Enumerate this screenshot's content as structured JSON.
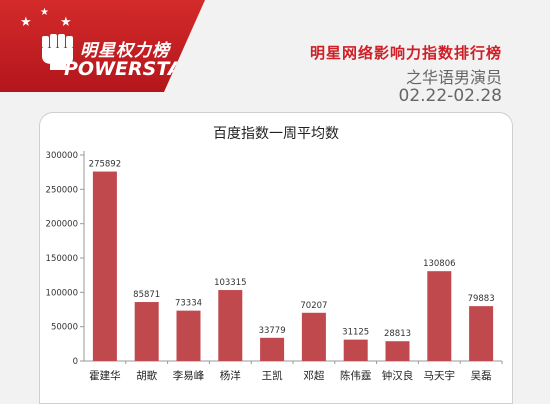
{
  "brand": {
    "name_cn": "明星权力榜",
    "name_en": "POWERSTAR"
  },
  "header": {
    "title": "明星网络影响力指数排行榜",
    "subtitle": "之华语男演员",
    "date_range": "02.22-02.28"
  },
  "colors": {
    "bar": "#c0494d",
    "accent": "#cf1f26"
  },
  "chart_data": {
    "type": "bar",
    "title": "百度指数一周平均数",
    "categories": [
      "霍建华",
      "胡歌",
      "李易峰",
      "杨洋",
      "王凯",
      "邓超",
      "陈伟霆",
      "钟汉良",
      "马天宇",
      "吴磊"
    ],
    "values": [
      275892,
      85871,
      73334,
      103315,
      33779,
      70207,
      31125,
      28813,
      130806,
      79883
    ],
    "ylim": [
      0,
      300000
    ],
    "yticks": [
      0,
      50000,
      100000,
      150000,
      200000,
      250000,
      300000
    ],
    "xlabel": "",
    "ylabel": "",
    "grid": false,
    "legend": "none"
  }
}
